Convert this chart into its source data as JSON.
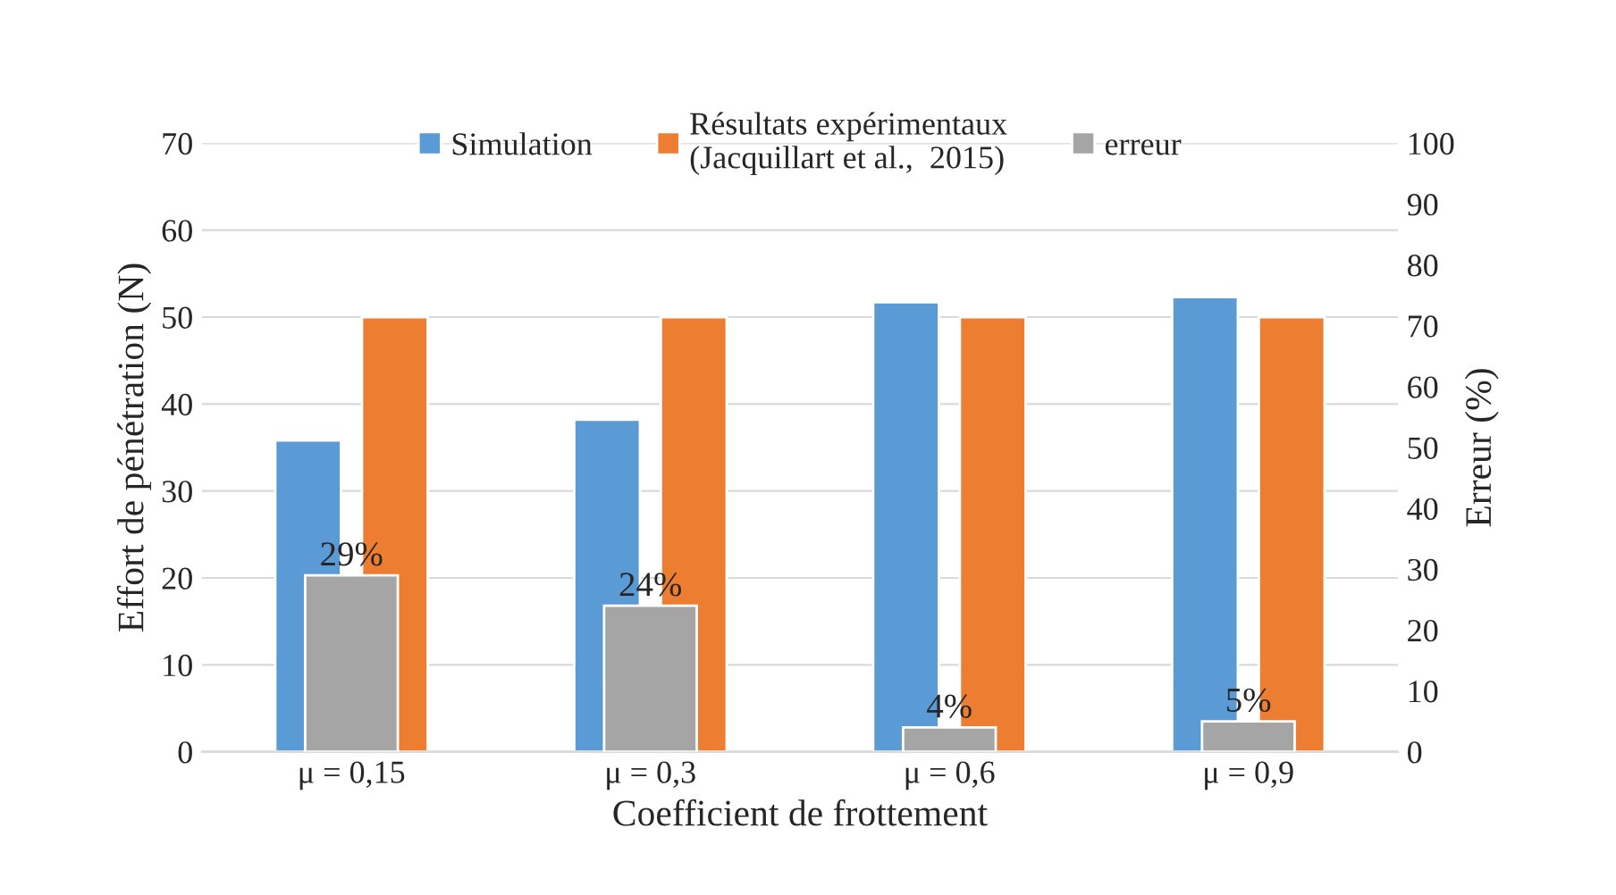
{
  "chart_data": {
    "type": "bar",
    "categories": [
      "μ = 0,15",
      "μ = 0,3",
      "μ = 0,6",
      "μ = 0,9"
    ],
    "xlabel": "Coefficient de frottement",
    "ylabel": "Effort de pénétration (N)",
    "y2label": "Erreur (%)",
    "series": [
      {
        "name": "Simulation",
        "color": "#5b9bd5",
        "values": [
          35.8,
          38.2,
          51.7,
          52.3
        ]
      },
      {
        "name": "Résultats expérimentaux\n(Jacquillart et al.,  2015)",
        "color": "#ed7d31",
        "values": [
          50,
          50,
          50,
          50
        ]
      },
      {
        "name": "erreur",
        "color": "#a5a5a5",
        "values": [
          29,
          24,
          4,
          5
        ],
        "axis": "y2",
        "value_labels": [
          "29%",
          "24%",
          "4%",
          "5%"
        ]
      }
    ],
    "ylim": [
      0,
      70
    ],
    "yticks": [
      0,
      10,
      20,
      30,
      40,
      50,
      60,
      70
    ],
    "y2lim": [
      0,
      100
    ],
    "y2ticks": [
      0,
      10,
      20,
      30,
      40,
      50,
      60,
      70,
      80,
      90,
      100
    ],
    "grid": "y",
    "legend": "top"
  }
}
